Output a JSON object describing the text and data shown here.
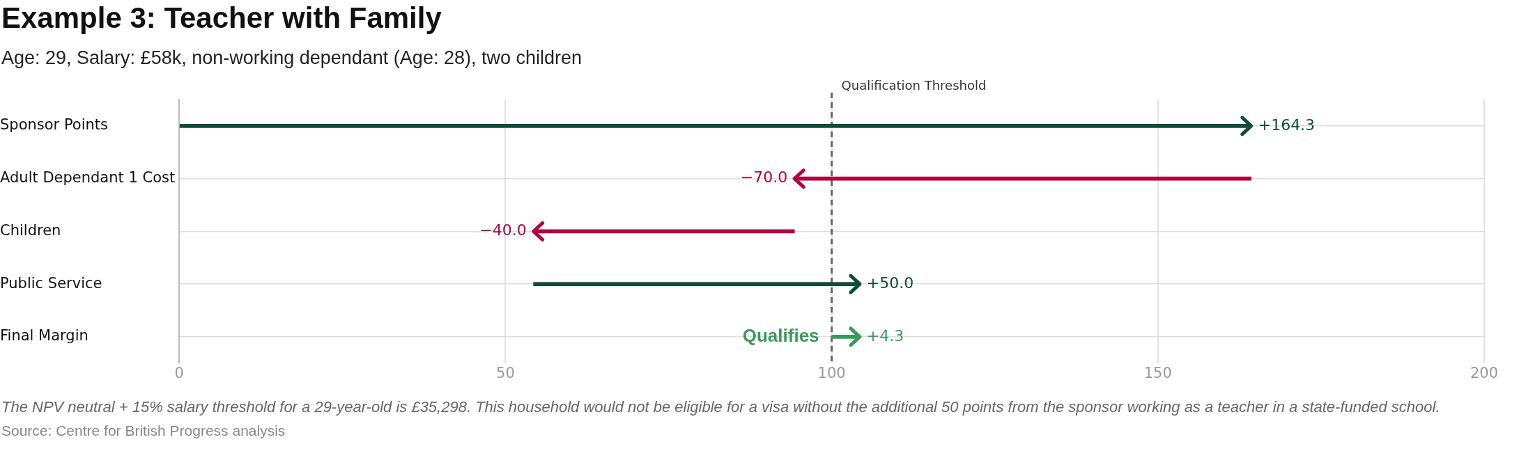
{
  "chart_data": {
    "type": "bar",
    "orientation": "horizontal",
    "title": "Example 3: Teacher with Family",
    "subtitle": "Age: 29, Salary: £58k, non-working dependant (Age: 28), two children",
    "categories": [
      "Sponsor Points",
      "Adult Dependant 1 Cost",
      "Children",
      "Public Service",
      "Final Margin"
    ],
    "base": [
      0,
      164.3,
      94.3,
      54.3,
      100
    ],
    "values": [
      164.3,
      -70,
      -40,
      50,
      4.3
    ],
    "colors": [
      "#0e4d37",
      "#b1063f",
      "#b1063f",
      "#0e4d37",
      "#3a9a5b"
    ],
    "value_labels": [
      "+164.3",
      "−70.0",
      "−40.0",
      "+50.0",
      "+4.3"
    ],
    "xlim": [
      0,
      200
    ],
    "xticks": [
      0,
      50,
      100,
      150,
      200
    ],
    "grid": true,
    "ref_lines": [
      {
        "axis": "x",
        "value": 100,
        "label": "Qualification Threshold",
        "color": "#666666",
        "line_style": "dashed"
      }
    ],
    "annotations": [
      {
        "text": "Qualifies",
        "x": 100,
        "y": "Final Margin"
      },
      "The NPV neutral + 15% salary threshold for a 29-year-old is £35,298. This household would not be eligible for a visa without the additional 50 points from the sponsor working as a teacher in a state-funded school.",
      "Source: Centre for British Progress analysis"
    ]
  }
}
